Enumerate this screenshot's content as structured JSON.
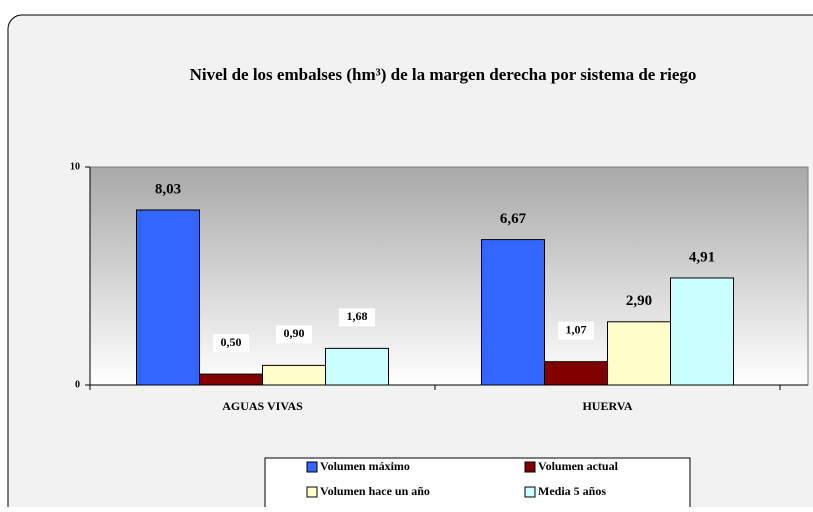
{
  "chart_data": {
    "type": "bar",
    "title": "Nivel de los embalses (hm³) de la margen derecha por sistema de riego",
    "categories": [
      "AGUAS VIVAS",
      "HUERVA"
    ],
    "series": [
      {
        "name": "Volumen máximo",
        "color": "#3366ff",
        "values": [
          8.03,
          6.67
        ],
        "value_labels": [
          "8,03",
          "6,67"
        ]
      },
      {
        "name": "Volumen actual",
        "color": "#800000",
        "values": [
          0.5,
          1.07
        ],
        "value_labels": [
          "0,50",
          "1,07"
        ]
      },
      {
        "name": "Volumen hace un año",
        "color": "#ffffcc",
        "values": [
          0.9,
          2.9
        ],
        "value_labels": [
          "0,90",
          "2,90"
        ]
      },
      {
        "name": "Media 5 años",
        "color": "#ccffff",
        "values": [
          1.68,
          4.91
        ],
        "value_labels": [
          "1,68",
          "4,91"
        ]
      }
    ],
    "ylim": [
      0,
      10
    ],
    "yticks": [
      0,
      10
    ]
  }
}
